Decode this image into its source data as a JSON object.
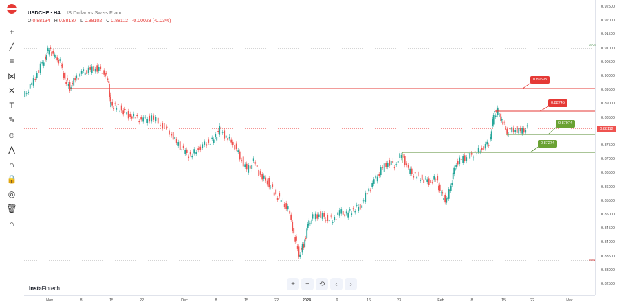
{
  "instrument": {
    "symbol_timeframe": "USDCHF · H4",
    "description": "US Dollar vs Swiss Franc"
  },
  "ohlc": {
    "o_label": "O",
    "o_value": "0.88134",
    "h_label": "H",
    "h_value": "0.88137",
    "l_label": "L",
    "l_value": "0.88102",
    "c_label": "C",
    "c_value": "0.88112",
    "change": "-0.00023 (-0.03%)"
  },
  "levels": {
    "resistance_1": "0.89593",
    "resistance_2": "0.88745",
    "support_1": "0.87974",
    "support_2": "0.87274"
  },
  "current_price": "0.88112",
  "price_axis_ticks": [
    "0.92500",
    "0.92000",
    "0.91500",
    "0.91000",
    "0.90500",
    "0.90000",
    "0.89500",
    "0.89000",
    "0.88500",
    "0.88000",
    "0.87500",
    "0.87000",
    "0.86500",
    "0.86000",
    "0.85500",
    "0.85000",
    "0.84500",
    "0.84000",
    "0.83500",
    "0.83000",
    "0.82500"
  ],
  "time_axis_ticks": [
    {
      "label": "Nov",
      "bold": false
    },
    {
      "label": "8",
      "bold": false
    },
    {
      "label": "15",
      "bold": false
    },
    {
      "label": "22",
      "bold": false
    },
    {
      "label": "Dec",
      "bold": false
    },
    {
      "label": "8",
      "bold": false
    },
    {
      "label": "15",
      "bold": false
    },
    {
      "label": "22",
      "bold": false
    },
    {
      "label": "2024",
      "bold": true
    },
    {
      "label": "9",
      "bold": false
    },
    {
      "label": "16",
      "bold": false
    },
    {
      "label": "23",
      "bold": false
    },
    {
      "label": "Feb",
      "bold": false
    },
    {
      "label": "8",
      "bold": false
    },
    {
      "label": "15",
      "bold": false
    },
    {
      "label": "22",
      "bold": false
    },
    {
      "label": "Mar",
      "bold": false
    }
  ],
  "watermark": {
    "brand_bold": "Insta",
    "brand_light": "Fintech"
  },
  "toolbar_icons": [
    "crosshair-icon",
    "trend-line-icon",
    "fib-icon",
    "pattern-icon",
    "projection-icon",
    "text-icon",
    "brush-icon",
    "emoji-icon",
    "measure-icon",
    "magnet-icon",
    "lock-icon",
    "visibility-icon",
    "trash-icon",
    "home-icon"
  ],
  "nav": {
    "zoom_in": "+",
    "zoom_out": "−",
    "reset": "⟲",
    "prev": "‹",
    "next": "›"
  },
  "colors": {
    "up": "#26a69a",
    "down": "#ef5350",
    "resistance": "#e53935",
    "support": "#558b2f"
  },
  "tags": {
    "max": "MAX",
    "min": "MIN"
  }
}
